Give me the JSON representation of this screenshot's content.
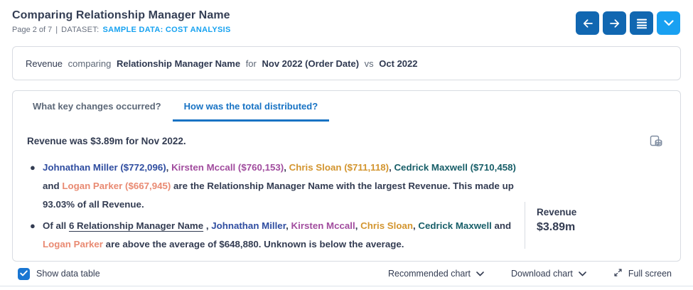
{
  "header": {
    "title": "Comparing Relationship Manager Name",
    "page_info": "Page 2 of 7",
    "separator": "|",
    "dataset_label": "DATASET:",
    "dataset_name": "SAMPLE DATA: COST ANALYSIS"
  },
  "toolbar": {
    "icons": [
      "arrow-left-icon",
      "arrow-right-icon",
      "menu-icon",
      "chevron-down-icon"
    ]
  },
  "query": {
    "segments": [
      {
        "text": "Revenue",
        "class": "q-strong"
      },
      {
        "text": " comparing ",
        "class": "q-light"
      },
      {
        "text": " Relationship Manager Name ",
        "class": "q-bold"
      },
      {
        "text": " for ",
        "class": "q-light"
      },
      {
        "text": "Nov 2022 (Order Date) ",
        "class": "q-bold"
      },
      {
        "text": " vs ",
        "class": "q-light"
      },
      {
        "text": "Oct 2022",
        "class": "q-bold"
      }
    ]
  },
  "tabs": [
    {
      "label": "What key changes occurred?",
      "active": false
    },
    {
      "label": "How was the total distributed?",
      "active": true
    }
  ],
  "insight": {
    "summary": "Revenue was $3.89m for Nov 2022.",
    "bullets": [
      {
        "segments": [
          {
            "text": "Johnathan Miller ($772,096)",
            "class": "name-blue"
          },
          {
            "text": ", ",
            "class": "plain"
          },
          {
            "text": "Kirsten Mccall ($760,153)",
            "class": "name-purple"
          },
          {
            "text": ", ",
            "class": "plain"
          },
          {
            "text": "Chris Sloan ($711,118)",
            "class": "name-orange"
          },
          {
            "text": ", ",
            "class": "plain"
          },
          {
            "text": "Cedrick Maxwell ($710,458)",
            "class": "name-teal"
          },
          {
            "text": " and ",
            "class": "plain"
          },
          {
            "text": "Logan Parker ($667,945)",
            "class": "name-salmon"
          },
          {
            "text": " are the Relationship Manager Name with the largest Revenue. This made up 93.03% of all Revenue.",
            "class": "plain"
          }
        ]
      },
      {
        "segments": [
          {
            "text": "Of all ",
            "class": "plain"
          },
          {
            "text": "6 Relationship Manager Name",
            "class": "link-underline",
            "name": "relationship-manager-count-link",
            "interactable": true
          },
          {
            "text": " , ",
            "class": "plain"
          },
          {
            "text": "Johnathan Miller",
            "class": "name-blue"
          },
          {
            "text": ", ",
            "class": "plain"
          },
          {
            "text": "Kirsten Mccall",
            "class": "name-purple"
          },
          {
            "text": ", ",
            "class": "plain"
          },
          {
            "text": "Chris Sloan",
            "class": "name-orange"
          },
          {
            "text": ", ",
            "class": "plain"
          },
          {
            "text": "Cedrick Maxwell",
            "class": "name-teal"
          },
          {
            "text": " and ",
            "class": "plain"
          },
          {
            "text": "Logan Parker",
            "class": "name-salmon"
          },
          {
            "text": " are above the average of $648,880. Unknown is below the average.",
            "class": "plain"
          }
        ]
      }
    ],
    "metric": {
      "label": "Revenue",
      "value": "$3.89m"
    }
  },
  "footer": {
    "show_data_table_label": "Show data table",
    "show_data_table_checked": true,
    "recommended_chart_label": "Recommended chart",
    "download_chart_label": "Download chart",
    "full_screen_label": "Full screen"
  },
  "colors": {
    "primary_button": "#1167B1",
    "secondary_button": "#19A0F1",
    "active_tab": "#1873C4",
    "dataset_link": "#17A2F0",
    "text_dark": "#333C52",
    "name_blue": "#2F4DA0",
    "name_purple": "#A14C9E",
    "name_orange": "#D3952F",
    "name_teal": "#175E68",
    "name_salmon": "#E98A72",
    "checkbox": "#1976D2"
  }
}
